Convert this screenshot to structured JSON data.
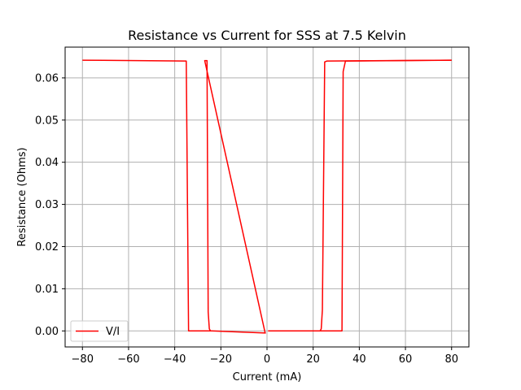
{
  "chart_data": {
    "type": "line",
    "title": "Resistance vs Current for SSS at 7.5 Kelvin",
    "xlabel": "Current (mA)",
    "ylabel": "Resistance (Ohms)",
    "xlim": [
      -87.5,
      87.5
    ],
    "ylim": [
      -0.0038,
      0.0673
    ],
    "xticks": [
      -80,
      -60,
      -40,
      -20,
      0,
      20,
      40,
      60,
      80
    ],
    "yticks": [
      0.0,
      0.01,
      0.02,
      0.03,
      0.04,
      0.05,
      0.06
    ],
    "xtick_labels": [
      "−80",
      "−60",
      "−40",
      "−20",
      "0",
      "20",
      "40",
      "60",
      "80"
    ],
    "ytick_labels": [
      "0.00",
      "0.01",
      "0.02",
      "0.03",
      "0.04",
      "0.05",
      "0.06"
    ],
    "grid": true,
    "legend_position": "lower-left",
    "series": [
      {
        "name": "V/I",
        "color": "#ff0000",
        "segments": [
          {
            "x": [
              -80,
              -35,
              -34,
              -33.8,
              -33,
              -25,
              -24,
              -0.5
            ],
            "y": [
              0.0642,
              0.064,
              0.0,
              0.0,
              0.0,
              0.0,
              0.0,
              -0.0005
            ]
          },
          {
            "x": [
              -0.8,
              -27,
              -26,
              -25.5,
              -25,
              -24.5
            ],
            "y": [
              -0.0005,
              0.0641,
              0.0641,
              0.0045,
              0.0005,
              0.0
            ]
          },
          {
            "x": [
              0.5,
              23,
              23.5,
              24,
              25,
              26,
              80
            ],
            "y": [
              0.0,
              0.0,
              0.0005,
              0.005,
              0.0638,
              0.064,
              0.0642
            ]
          },
          {
            "x": [
              0.5,
              32,
              32.5,
              33,
              34,
              80
            ],
            "y": [
              0.0,
              0.0,
              0.0,
              0.0615,
              0.064,
              0.0642
            ]
          }
        ]
      }
    ]
  }
}
